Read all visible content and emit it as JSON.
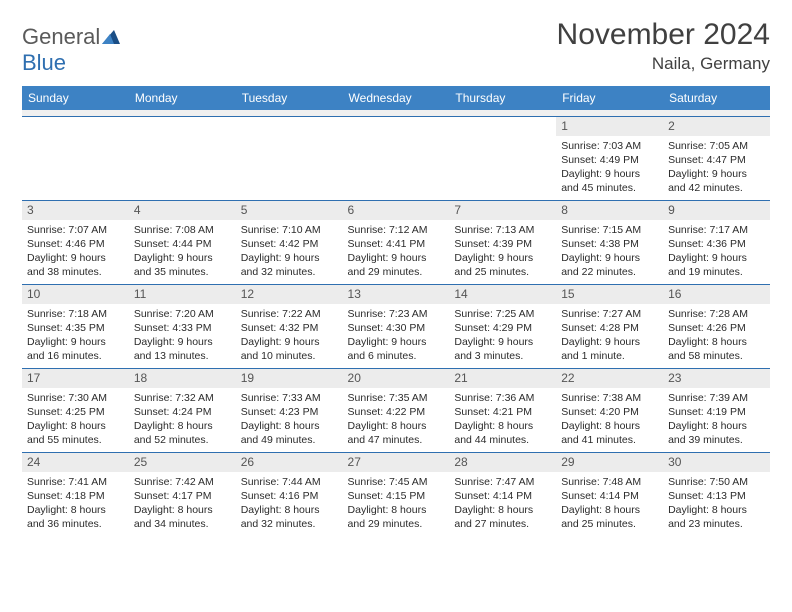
{
  "brand": {
    "name_a": "General",
    "name_b": "Blue"
  },
  "title": "November 2024",
  "location": "Naila, Germany",
  "colors": {
    "header_bg": "#3d82c4",
    "header_text": "#ffffff",
    "rule": "#2f6fb0",
    "daynum_bg": "#ececec",
    "body_text": "#2b2b2b",
    "title_text": "#404040"
  },
  "weekdays": [
    "Sunday",
    "Monday",
    "Tuesday",
    "Wednesday",
    "Thursday",
    "Friday",
    "Saturday"
  ],
  "weeks": [
    [
      null,
      null,
      null,
      null,
      null,
      {
        "n": "1",
        "sr": "Sunrise: 7:03 AM",
        "ss": "Sunset: 4:49 PM",
        "d1": "Daylight: 9 hours",
        "d2": "and 45 minutes."
      },
      {
        "n": "2",
        "sr": "Sunrise: 7:05 AM",
        "ss": "Sunset: 4:47 PM",
        "d1": "Daylight: 9 hours",
        "d2": "and 42 minutes."
      }
    ],
    [
      {
        "n": "3",
        "sr": "Sunrise: 7:07 AM",
        "ss": "Sunset: 4:46 PM",
        "d1": "Daylight: 9 hours",
        "d2": "and 38 minutes."
      },
      {
        "n": "4",
        "sr": "Sunrise: 7:08 AM",
        "ss": "Sunset: 4:44 PM",
        "d1": "Daylight: 9 hours",
        "d2": "and 35 minutes."
      },
      {
        "n": "5",
        "sr": "Sunrise: 7:10 AM",
        "ss": "Sunset: 4:42 PM",
        "d1": "Daylight: 9 hours",
        "d2": "and 32 minutes."
      },
      {
        "n": "6",
        "sr": "Sunrise: 7:12 AM",
        "ss": "Sunset: 4:41 PM",
        "d1": "Daylight: 9 hours",
        "d2": "and 29 minutes."
      },
      {
        "n": "7",
        "sr": "Sunrise: 7:13 AM",
        "ss": "Sunset: 4:39 PM",
        "d1": "Daylight: 9 hours",
        "d2": "and 25 minutes."
      },
      {
        "n": "8",
        "sr": "Sunrise: 7:15 AM",
        "ss": "Sunset: 4:38 PM",
        "d1": "Daylight: 9 hours",
        "d2": "and 22 minutes."
      },
      {
        "n": "9",
        "sr": "Sunrise: 7:17 AM",
        "ss": "Sunset: 4:36 PM",
        "d1": "Daylight: 9 hours",
        "d2": "and 19 minutes."
      }
    ],
    [
      {
        "n": "10",
        "sr": "Sunrise: 7:18 AM",
        "ss": "Sunset: 4:35 PM",
        "d1": "Daylight: 9 hours",
        "d2": "and 16 minutes."
      },
      {
        "n": "11",
        "sr": "Sunrise: 7:20 AM",
        "ss": "Sunset: 4:33 PM",
        "d1": "Daylight: 9 hours",
        "d2": "and 13 minutes."
      },
      {
        "n": "12",
        "sr": "Sunrise: 7:22 AM",
        "ss": "Sunset: 4:32 PM",
        "d1": "Daylight: 9 hours",
        "d2": "and 10 minutes."
      },
      {
        "n": "13",
        "sr": "Sunrise: 7:23 AM",
        "ss": "Sunset: 4:30 PM",
        "d1": "Daylight: 9 hours",
        "d2": "and 6 minutes."
      },
      {
        "n": "14",
        "sr": "Sunrise: 7:25 AM",
        "ss": "Sunset: 4:29 PM",
        "d1": "Daylight: 9 hours",
        "d2": "and 3 minutes."
      },
      {
        "n": "15",
        "sr": "Sunrise: 7:27 AM",
        "ss": "Sunset: 4:28 PM",
        "d1": "Daylight: 9 hours",
        "d2": "and 1 minute."
      },
      {
        "n": "16",
        "sr": "Sunrise: 7:28 AM",
        "ss": "Sunset: 4:26 PM",
        "d1": "Daylight: 8 hours",
        "d2": "and 58 minutes."
      }
    ],
    [
      {
        "n": "17",
        "sr": "Sunrise: 7:30 AM",
        "ss": "Sunset: 4:25 PM",
        "d1": "Daylight: 8 hours",
        "d2": "and 55 minutes."
      },
      {
        "n": "18",
        "sr": "Sunrise: 7:32 AM",
        "ss": "Sunset: 4:24 PM",
        "d1": "Daylight: 8 hours",
        "d2": "and 52 minutes."
      },
      {
        "n": "19",
        "sr": "Sunrise: 7:33 AM",
        "ss": "Sunset: 4:23 PM",
        "d1": "Daylight: 8 hours",
        "d2": "and 49 minutes."
      },
      {
        "n": "20",
        "sr": "Sunrise: 7:35 AM",
        "ss": "Sunset: 4:22 PM",
        "d1": "Daylight: 8 hours",
        "d2": "and 47 minutes."
      },
      {
        "n": "21",
        "sr": "Sunrise: 7:36 AM",
        "ss": "Sunset: 4:21 PM",
        "d1": "Daylight: 8 hours",
        "d2": "and 44 minutes."
      },
      {
        "n": "22",
        "sr": "Sunrise: 7:38 AM",
        "ss": "Sunset: 4:20 PM",
        "d1": "Daylight: 8 hours",
        "d2": "and 41 minutes."
      },
      {
        "n": "23",
        "sr": "Sunrise: 7:39 AM",
        "ss": "Sunset: 4:19 PM",
        "d1": "Daylight: 8 hours",
        "d2": "and 39 minutes."
      }
    ],
    [
      {
        "n": "24",
        "sr": "Sunrise: 7:41 AM",
        "ss": "Sunset: 4:18 PM",
        "d1": "Daylight: 8 hours",
        "d2": "and 36 minutes."
      },
      {
        "n": "25",
        "sr": "Sunrise: 7:42 AM",
        "ss": "Sunset: 4:17 PM",
        "d1": "Daylight: 8 hours",
        "d2": "and 34 minutes."
      },
      {
        "n": "26",
        "sr": "Sunrise: 7:44 AM",
        "ss": "Sunset: 4:16 PM",
        "d1": "Daylight: 8 hours",
        "d2": "and 32 minutes."
      },
      {
        "n": "27",
        "sr": "Sunrise: 7:45 AM",
        "ss": "Sunset: 4:15 PM",
        "d1": "Daylight: 8 hours",
        "d2": "and 29 minutes."
      },
      {
        "n": "28",
        "sr": "Sunrise: 7:47 AM",
        "ss": "Sunset: 4:14 PM",
        "d1": "Daylight: 8 hours",
        "d2": "and 27 minutes."
      },
      {
        "n": "29",
        "sr": "Sunrise: 7:48 AM",
        "ss": "Sunset: 4:14 PM",
        "d1": "Daylight: 8 hours",
        "d2": "and 25 minutes."
      },
      {
        "n": "30",
        "sr": "Sunrise: 7:50 AM",
        "ss": "Sunset: 4:13 PM",
        "d1": "Daylight: 8 hours",
        "d2": "and 23 minutes."
      }
    ]
  ]
}
